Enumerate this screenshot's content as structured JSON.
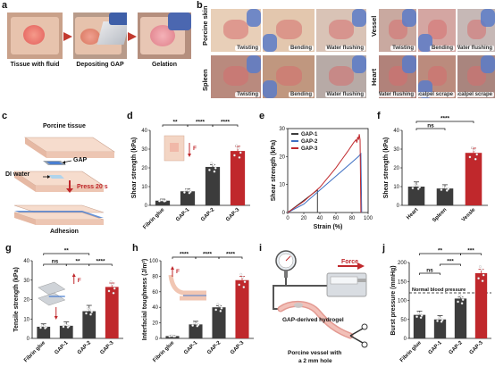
{
  "panels": {
    "a": {
      "letter": "a",
      "captions": [
        "Tissue with fluid",
        "Depositing GAP",
        "Gelation"
      ]
    },
    "b": {
      "letter": "b",
      "groups": [
        {
          "name": "Porcine skin",
          "tags": [
            "Twisting",
            "Bending",
            "Water flushing"
          ]
        },
        {
          "name": "Vessel",
          "tags": [
            "Twisting",
            "Bending",
            "Water flushing"
          ]
        },
        {
          "name": "Spleen",
          "tags": [
            "Twisting",
            "Bending",
            "Water flushing"
          ]
        },
        {
          "name": "Heart",
          "tags": [
            "Water flushing",
            "scalpel scrape",
            "scalpel scrape"
          ]
        }
      ]
    },
    "c": {
      "letter": "c",
      "porcine_tissue": "Porcine tissue",
      "gap": "GAP",
      "di_water": "DI water",
      "press": "Press 20 s",
      "adhesion": "Adhesion"
    },
    "i": {
      "letter": "i",
      "force": "Force",
      "hydrogel": "GAP-derived hydrogel",
      "vessel": "Porcine vessel with",
      "vessel2": "a 2 mm hole"
    }
  },
  "colors": {
    "dark": "#3c3c3c",
    "blue": "#3e6fc2",
    "red": "#c0282c",
    "tissue": "#f2d3c4"
  },
  "chart_data": [
    {
      "id": "d",
      "letter": "d",
      "type": "bar",
      "ylabel": "Shear strength (kPa)",
      "categories": [
        "Fibrin glue",
        "GAP-1",
        "GAP-2",
        "GAP-3"
      ],
      "values": [
        2.5,
        7.5,
        20.5,
        29
      ],
      "errors": [
        0.8,
        1.2,
        1.2,
        2.5
      ],
      "yticks": [
        0,
        10,
        20,
        30,
        40
      ],
      "ylim": [
        0,
        40
      ],
      "bar_colors": [
        "#3c3c3c",
        "#3c3c3c",
        "#3c3c3c",
        "#c0282c"
      ],
      "sig": [
        {
          "text": "**"
        },
        {
          "text": "****"
        },
        {
          "text": "****"
        }
      ],
      "inset_label": "F"
    },
    {
      "id": "e",
      "letter": "e",
      "type": "line",
      "xlabel": "Strain (%)",
      "ylabel": "Shear strength (kPa)",
      "xticks": [
        0,
        20,
        40,
        60,
        80,
        100
      ],
      "xlim": [
        0,
        100
      ],
      "yticks": [
        0,
        10,
        20,
        30
      ],
      "ylim": [
        0,
        30
      ],
      "series": [
        {
          "name": "GAP-1",
          "color": "#3c3c3c",
          "points": [
            [
              0,
              0
            ],
            [
              37,
              8
            ],
            [
              37,
              0
            ]
          ]
        },
        {
          "name": "GAP-2",
          "color": "#3e6fc2",
          "points": [
            [
              0,
              0
            ],
            [
              20,
              3
            ],
            [
              40,
              8
            ],
            [
              60,
              13
            ],
            [
              80,
              18
            ],
            [
              88,
              20
            ],
            [
              91,
              21
            ],
            [
              92,
              0
            ]
          ]
        },
        {
          "name": "GAP-3",
          "color": "#c0282c",
          "points": [
            [
              0,
              0
            ],
            [
              20,
              4
            ],
            [
              40,
              9
            ],
            [
              60,
              16
            ],
            [
              75,
              22
            ],
            [
              82,
              25
            ],
            [
              85,
              26
            ],
            [
              86,
              25
            ],
            [
              87,
              27
            ],
            [
              88,
              26
            ],
            [
              89,
              28
            ],
            [
              90,
              26
            ],
            [
              91,
              0
            ]
          ]
        }
      ]
    },
    {
      "id": "f",
      "letter": "f",
      "type": "bar",
      "ylabel": "Shear strength (kPa)",
      "categories": [
        "Heart",
        "Spleen",
        "Vessle"
      ],
      "values": [
        10,
        9,
        28
      ],
      "errors": [
        2.5,
        2,
        2.5
      ],
      "yticks": [
        0,
        10,
        20,
        30,
        40
      ],
      "ylim": [
        0,
        40
      ],
      "bar_colors": [
        "#3c3c3c",
        "#3c3c3c",
        "#c0282c"
      ],
      "sig": [
        {
          "text": "ns"
        },
        {
          "text": "****"
        }
      ]
    },
    {
      "id": "g",
      "letter": "g",
      "type": "bar",
      "ylabel": "Tensile strength (kPa)",
      "categories": [
        "Fibrin glue",
        "GAP-1",
        "GAP-2",
        "GAP-3"
      ],
      "values": [
        6,
        6.5,
        14,
        26.5
      ],
      "errors": [
        1.5,
        2,
        3,
        2
      ],
      "yticks": [
        0,
        10,
        20,
        30,
        40
      ],
      "ylim": [
        0,
        40
      ],
      "bar_colors": [
        "#3c3c3c",
        "#3c3c3c",
        "#3c3c3c",
        "#c0282c"
      ],
      "sig": [
        {
          "text": "**"
        },
        {
          "text": "ns"
        },
        {
          "text": "**"
        },
        {
          "text": "****"
        }
      ],
      "inset_label": "F"
    },
    {
      "id": "h",
      "letter": "h",
      "type": "bar",
      "ylabel": "Interfacial toughness (J/m²)",
      "categories": [
        "Fibrin glue",
        "GAP-1",
        "GAP-2",
        "GAP-3"
      ],
      "values": [
        3,
        18,
        40,
        75
      ],
      "errors": [
        1,
        4,
        2,
        5
      ],
      "yticks": [
        0,
        20,
        40,
        60,
        80,
        100
      ],
      "ylim": [
        0,
        100
      ],
      "bar_colors": [
        "#3c3c3c",
        "#3c3c3c",
        "#3c3c3c",
        "#c0282c"
      ],
      "sig": [
        {
          "text": "****"
        },
        {
          "text": "****"
        },
        {
          "text": "****"
        }
      ],
      "inset_label": "F"
    },
    {
      "id": "j",
      "letter": "j",
      "type": "bar",
      "ylabel": "Burst pressure (mmHg)",
      "categories": [
        "Fibrin glue",
        "GAP-1",
        "GAP-2",
        "GAP-3"
      ],
      "values": [
        62,
        50,
        105,
        172
      ],
      "errors": [
        10,
        10,
        4,
        10
      ],
      "yticks": [
        0,
        50,
        100,
        150,
        200
      ],
      "ylim": [
        0,
        200
      ],
      "bar_colors": [
        "#3c3c3c",
        "#3c3c3c",
        "#3c3c3c",
        "#c0282c"
      ],
      "sig": [
        {
          "text": "**"
        },
        {
          "text": "***"
        },
        {
          "text": "ns"
        },
        {
          "text": "***"
        }
      ],
      "refline": {
        "value": 120,
        "label": "Normal blood pressure"
      }
    }
  ]
}
